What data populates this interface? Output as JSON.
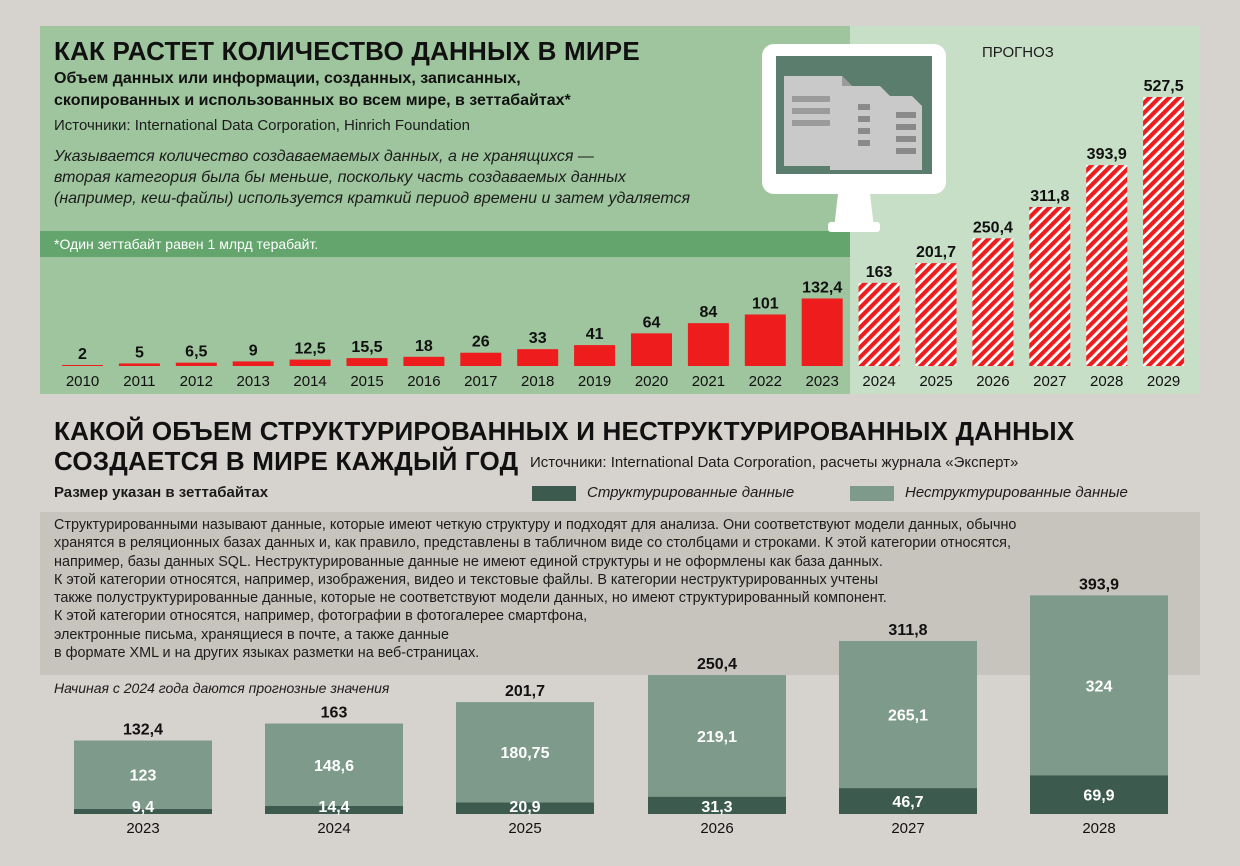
{
  "top": {
    "title": "КАК РАСТЕТ КОЛИЧЕСТВО ДАННЫХ В МИРЕ",
    "subtitle_line1": "Объем данных или информации, созданных, записанных,",
    "subtitle_line2": "скопированных и использованных во всем мире, в зеттабайтах*",
    "source": "Источники: International Data Corporation, Hinrich Foundation",
    "note_line1": "Указывается количество создаваемаемых данных, а не хранящихся —",
    "note_line2": "вторая категория была бы меньше, поскольку часть создаваемых данных",
    "note_line3": "(например, кеш-файлы) используется краткий период времени и затем удаляется",
    "footnote": "*Один зеттабайт равен 1 млрд терабайт.",
    "forecast_label": "ПРОГНОЗ"
  },
  "bottom": {
    "title_line1": "КАКОЙ ОБЪЕМ СТРУКТУРИРОВАННЫХ И НЕСТРУКТУРИРОВАННЫХ ДАННЫХ",
    "title_line2": "СОЗДАЕТСЯ В МИРЕ КАЖДЫЙ ГОД",
    "source": "Источники: International Data Corporation, расчеты журнала «Эксперт»",
    "size_note": "Размер указан в зеттабайтах",
    "legend_structured": "Структурированные данные",
    "legend_unstructured": "Неструктурированные данные",
    "desc_lines": [
      "Структурированными называют данные, которые имеют четкую структуру и подходят для анализа. Они соответствуют модели данных, обычно",
      "хранятся в реляционных базах данных и, как правило, представлены в табличном виде со столбцами и строками. К этой категории относятся,",
      "например, базы данных SQL. Неструктурированные данные не имеют единой структуры и не оформлены как база данных.",
      "К этой категории относятся, например, изображения, видео и текстовые файлы. В категории неструктурированных учтены",
      "также полуструктурированные данные, которые не соответствуют модели данных, но имеют структурированный компонент.",
      "К этой категории относятся, например, фотографии в фотогалерее смартфона,",
      "электронные письма, хранящиеся в почте, а также данные",
      "в формате XML и на других языках разметки на веб-страницах."
    ],
    "forecast_note": "Начиная с 2024 года даются прогнозные значения"
  },
  "colors": {
    "actual_bar": "#ee1c1c",
    "forecast_stripe": "#ee1c1c",
    "structured": "#3d5a4f",
    "unstructured": "#7d9a8b"
  },
  "chart_data": [
    {
      "type": "bar",
      "title": "КАК РАСТЕТ КОЛИЧЕСТВО ДАННЫХ В МИРЕ",
      "categories": [
        "2010",
        "2011",
        "2012",
        "2013",
        "2014",
        "2015",
        "2016",
        "2017",
        "2018",
        "2019",
        "2020",
        "2021",
        "2022",
        "2023",
        "2024",
        "2025",
        "2026",
        "2027",
        "2028",
        "2029"
      ],
      "values": [
        2,
        5,
        6.5,
        9,
        12.5,
        15.5,
        18,
        26,
        33,
        41,
        64,
        84,
        101,
        132.4,
        163,
        201.7,
        250.4,
        311.8,
        393.9,
        527.5
      ],
      "labels": [
        "2",
        "5",
        "6,5",
        "9",
        "12,5",
        "15,5",
        "18",
        "26",
        "33",
        "41",
        "64",
        "84",
        "101",
        "132,4",
        "163",
        "201,7",
        "250,4",
        "311,8",
        "393,9",
        "527,5"
      ],
      "forecast_from": "2024",
      "ylim": [
        0,
        530
      ],
      "grid": false,
      "xlabel": "",
      "ylabel": ""
    },
    {
      "type": "bar",
      "stacked": true,
      "title": "КАКОЙ ОБЪЕМ СТРУКТУРИРОВАННЫХ И НЕСТРУКТУРИРОВАННЫХ ДАННЫХ СОЗДАЕТСЯ В МИРЕ КАЖДЫЙ ГОД",
      "categories": [
        "2023",
        "2024",
        "2025",
        "2026",
        "2027",
        "2028"
      ],
      "series": [
        {
          "name": "Структурированные данные",
          "values": [
            9.4,
            14.4,
            20.9,
            31.3,
            46.7,
            69.9
          ],
          "labels": [
            "9,4",
            "14,4",
            "20,9",
            "31,3",
            "46,7",
            "69,9"
          ]
        },
        {
          "name": "Неструктурированные данные",
          "values": [
            123,
            148.6,
            180.75,
            219.1,
            265.1,
            324
          ],
          "labels": [
            "123",
            "148,6",
            "180,75",
            "219,1",
            "265,1",
            "324"
          ]
        }
      ],
      "totals": [
        132.4,
        163,
        201.7,
        250.4,
        311.8,
        393.9
      ],
      "total_labels": [
        "132,4",
        "163",
        "201,7",
        "250,4",
        "311,8",
        "393,9"
      ],
      "ylim": [
        0,
        400
      ],
      "legend": "top-right",
      "grid": false
    }
  ]
}
